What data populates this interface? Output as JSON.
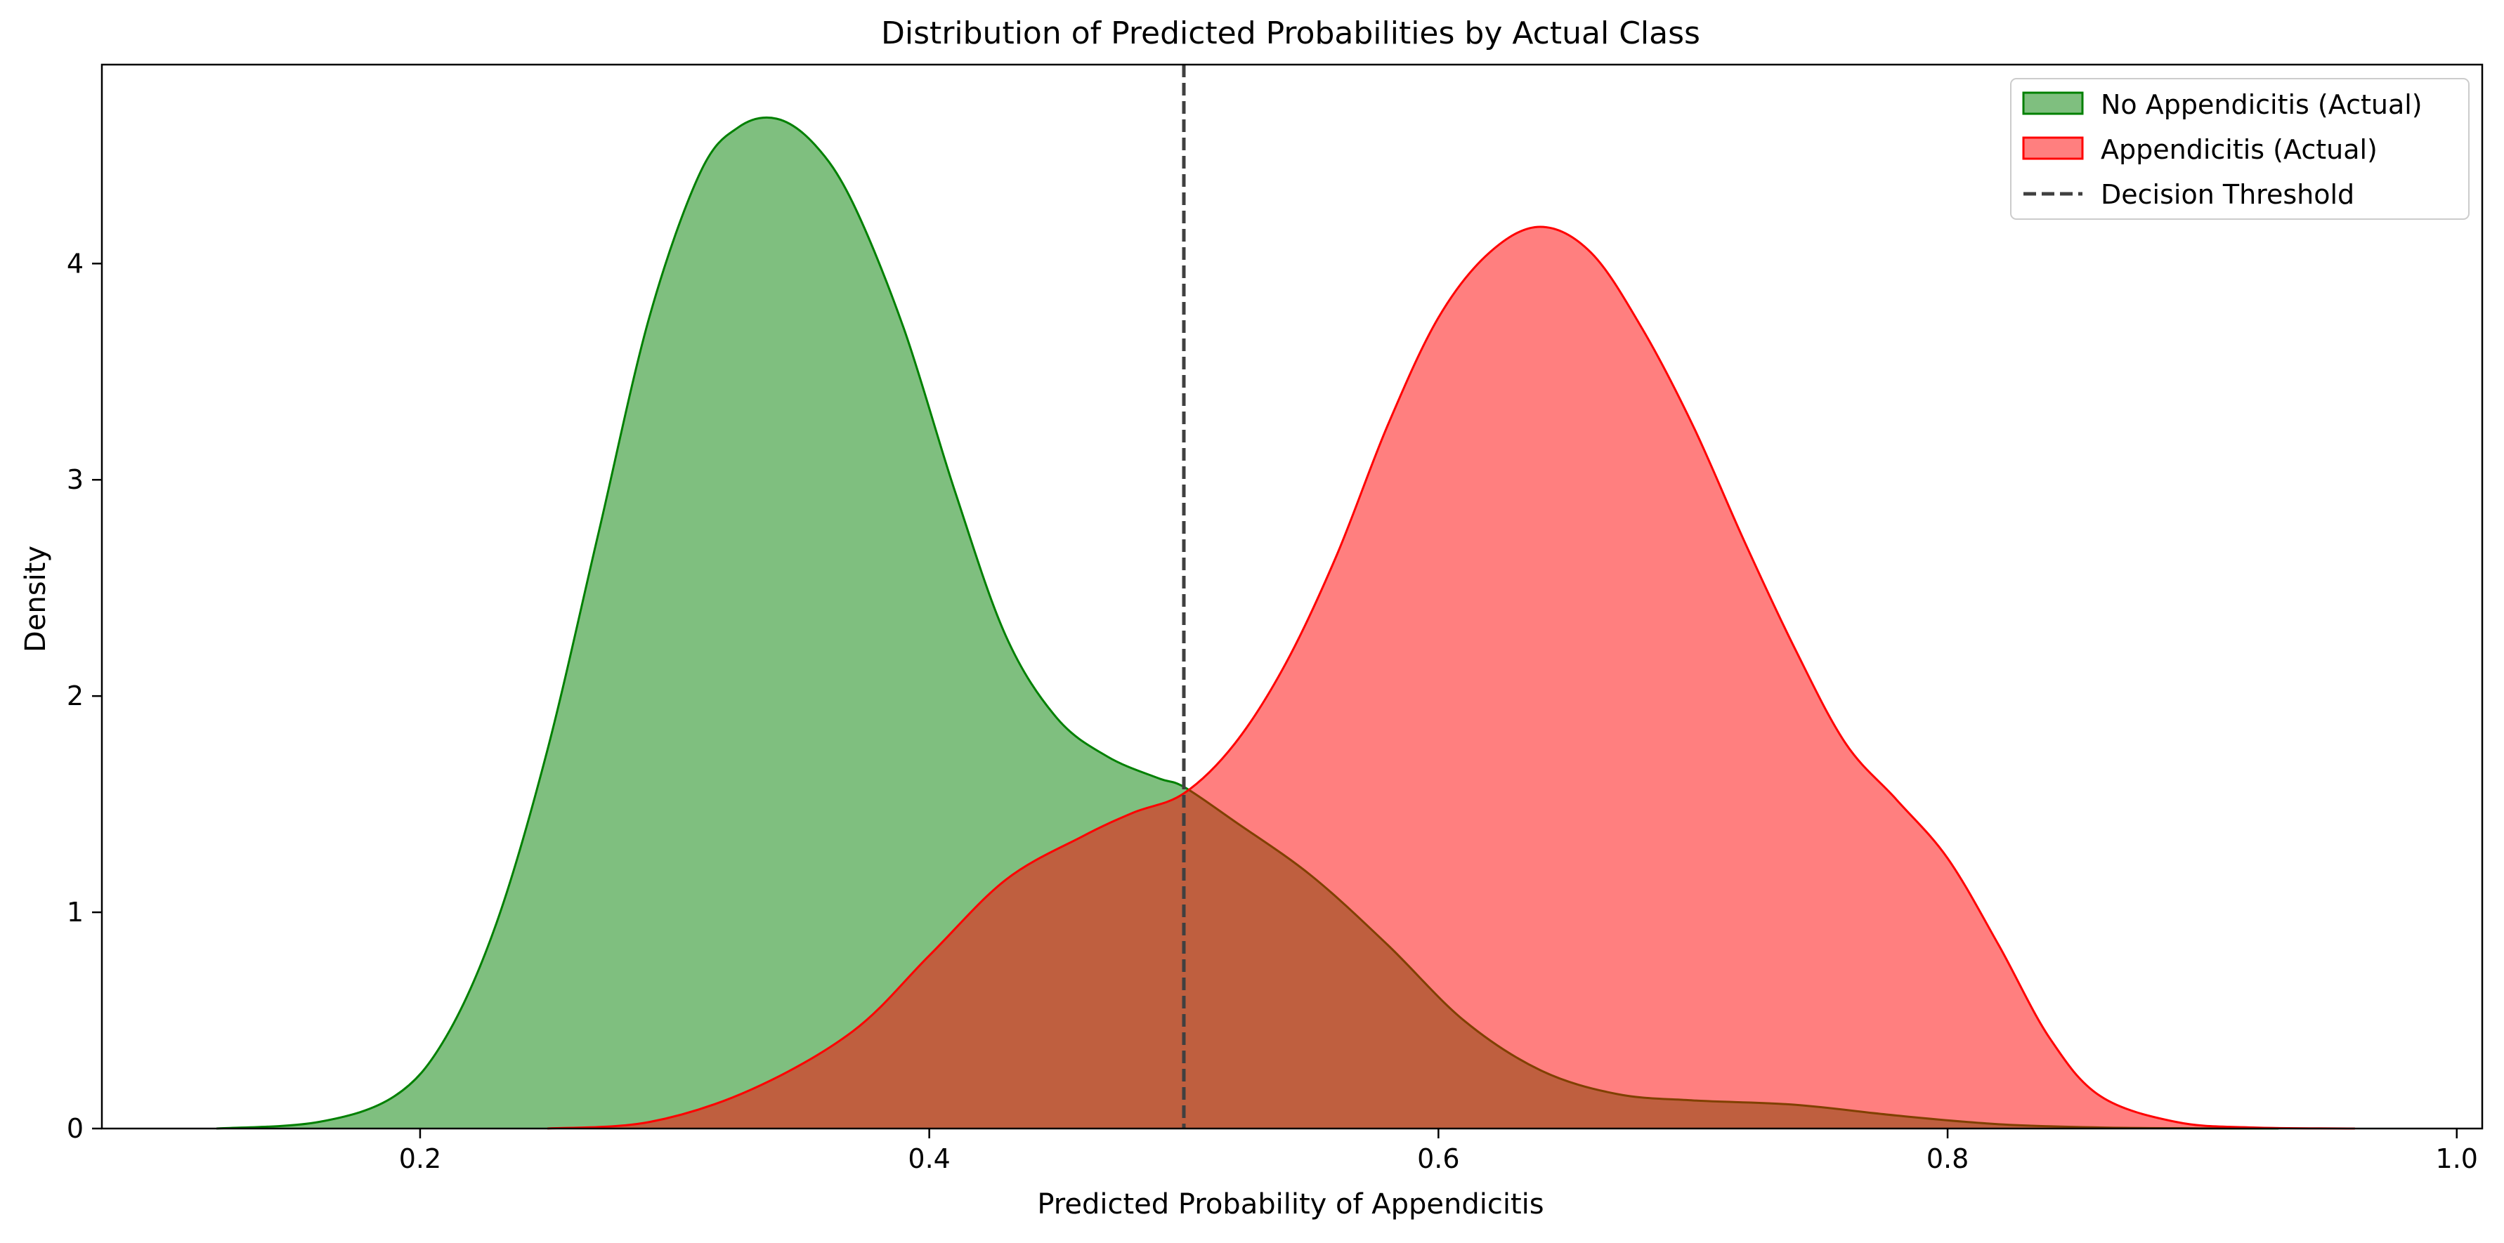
{
  "chart_data": {
    "type": "area",
    "title": "Distribution of Predicted Probabilities by Actual Class",
    "xlabel": "Predicted Probability of Appendicitis",
    "ylabel": "Density",
    "xlim": [
      0.075,
      1.01
    ],
    "ylim": [
      0,
      4.92
    ],
    "x_ticks": [
      0.2,
      0.4,
      0.6,
      0.8,
      1.0
    ],
    "x_tick_labels": [
      "0.2",
      "0.4",
      "0.6",
      "0.8",
      "1.0"
    ],
    "y_ticks": [
      0,
      1,
      2,
      3,
      4
    ],
    "y_tick_labels": [
      "0",
      "1",
      "2",
      "3",
      "4"
    ],
    "grid": false,
    "legend_position": "top-right",
    "series": [
      {
        "name": "No Appendicitis (Actual)",
        "color": "#008000",
        "fill": "#7fbf7f",
        "x": [
          0.12,
          0.16,
          0.19,
          0.21,
          0.23,
          0.25,
          0.27,
          0.29,
          0.31,
          0.325,
          0.34,
          0.355,
          0.37,
          0.39,
          0.41,
          0.43,
          0.45,
          0.47,
          0.49,
          0.5,
          0.52,
          0.55,
          0.58,
          0.61,
          0.64,
          0.67,
          0.7,
          0.74,
          0.78,
          0.82,
          0.86,
          0.9,
          0.93
        ],
        "y": [
          0.0,
          0.03,
          0.15,
          0.42,
          0.95,
          1.75,
          2.75,
          3.75,
          4.42,
          4.63,
          4.67,
          4.55,
          4.28,
          3.7,
          2.95,
          2.28,
          1.9,
          1.72,
          1.62,
          1.58,
          1.42,
          1.17,
          0.85,
          0.5,
          0.27,
          0.16,
          0.13,
          0.11,
          0.06,
          0.02,
          0.005,
          0.001,
          0.0
        ]
      },
      {
        "name": "Appendicitis (Actual)",
        "color": "#ff0000",
        "fill": "#ff7f7f",
        "x": [
          0.25,
          0.29,
          0.33,
          0.37,
          0.4,
          0.43,
          0.46,
          0.48,
          0.5,
          0.52,
          0.54,
          0.56,
          0.58,
          0.6,
          0.62,
          0.64,
          0.66,
          0.68,
          0.7,
          0.72,
          0.74,
          0.76,
          0.78,
          0.8,
          0.82,
          0.84,
          0.86,
          0.89,
          0.92,
          0.96
        ],
        "y": [
          0.0,
          0.03,
          0.18,
          0.45,
          0.8,
          1.15,
          1.35,
          1.46,
          1.55,
          1.78,
          2.15,
          2.65,
          3.25,
          3.75,
          4.05,
          4.17,
          4.05,
          3.7,
          3.25,
          2.72,
          2.22,
          1.78,
          1.52,
          1.25,
          0.85,
          0.42,
          0.15,
          0.03,
          0.005,
          0.0
        ]
      }
    ],
    "reference_lines": [
      {
        "name": "Decision Threshold",
        "orientation": "vertical",
        "x": 0.5,
        "color": "#404040",
        "style": "dashed"
      }
    ],
    "legend": [
      {
        "label": "No Appendicitis (Actual)",
        "kind": "patch",
        "fill": "#7fbf7f",
        "edge": "#008000"
      },
      {
        "label": "Appendicitis (Actual)",
        "kind": "patch",
        "fill": "#ff7f7f",
        "edge": "#ff0000"
      },
      {
        "label": "Decision Threshold",
        "kind": "line",
        "color": "#404040"
      }
    ]
  }
}
